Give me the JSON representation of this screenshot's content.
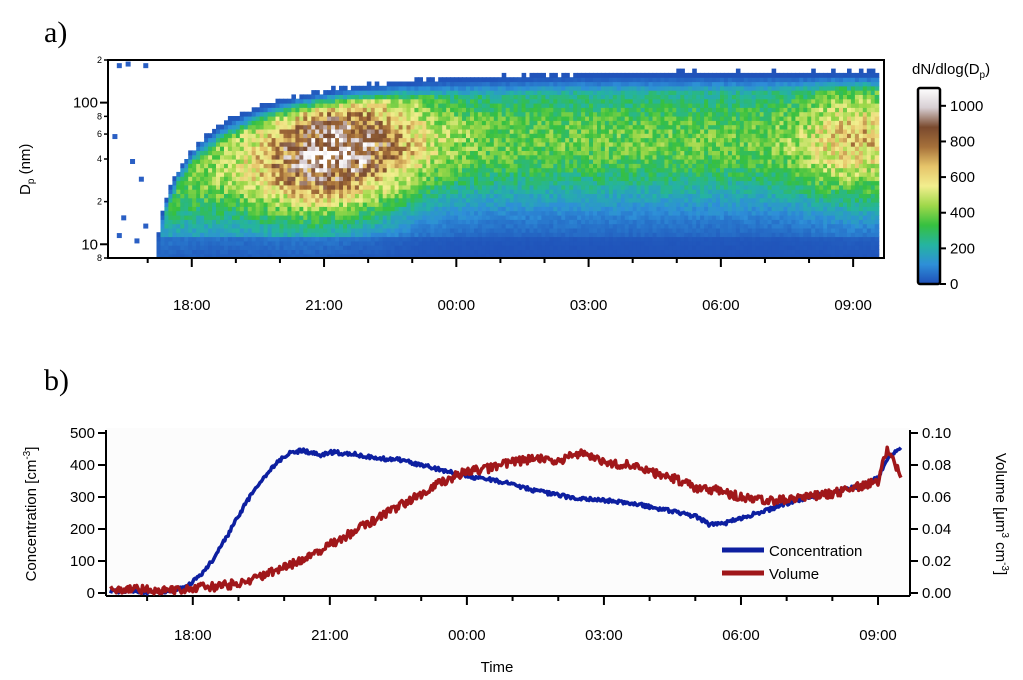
{
  "chart_data": [
    {
      "id": "a",
      "panel_label": "a)",
      "type": "heatmap",
      "ylabel": {
        "main": "D",
        "sub": "p",
        "suffix": " (nm)"
      },
      "y_scale": "log",
      "ylim_nm": [
        8,
        200
      ],
      "y_major_ticks": [
        {
          "value": 10,
          "label": "10"
        },
        {
          "value": 100,
          "label": "100"
        }
      ],
      "y_minor_ticks": [
        {
          "value": 8,
          "label": "8"
        },
        {
          "value": 20,
          "label": "2"
        },
        {
          "value": 40,
          "label": "4"
        },
        {
          "value": 60,
          "label": "6"
        },
        {
          "value": 80,
          "label": "8"
        },
        {
          "value": 200,
          "label": "2"
        }
      ],
      "x_tick_labels": [
        "18:00",
        "21:00",
        "00:00",
        "03:00",
        "06:00",
        "09:00"
      ],
      "x_ticks_hours": [
        18,
        21,
        24,
        27,
        30,
        33
      ],
      "xlim_hours": [
        16.1,
        33.7
      ],
      "data_hours": [
        17.2,
        33.5
      ],
      "colorbar": {
        "title": "dN/dlog(D",
        "title_sub": "p",
        "title_suffix": ")",
        "ticks": [
          0,
          200,
          400,
          600,
          800,
          1000
        ],
        "range": [
          0,
          1100
        ],
        "colors": [
          "#1f4fb8",
          "#2e8fd8",
          "#25b4a0",
          "#36c040",
          "#9fd84a",
          "#f2ee8e",
          "#e6c46a",
          "#a6703a",
          "#7a4a2e",
          "#d8cfd4",
          "#ffffff"
        ]
      },
      "description_points": [
        {
          "t": 17.5,
          "dp_nm": 9,
          "dN": 100
        },
        {
          "t": 20.5,
          "dp_nm": 40,
          "dN": 1000
        },
        {
          "t": 21.5,
          "dp_nm": 45,
          "dN": 1100
        },
        {
          "t": 24.0,
          "dp_nm": 50,
          "dN": 450
        },
        {
          "t": 27.0,
          "dp_nm": 55,
          "dN": 350
        },
        {
          "t": 33.0,
          "dp_nm": 45,
          "dN": 650
        }
      ]
    },
    {
      "id": "b",
      "panel_label": "b)",
      "type": "line",
      "xlabel": "Time",
      "ylabel_left": {
        "main": "Concentration [cm",
        "sup": "-3",
        "suffix": "]"
      },
      "ylabel_right": {
        "p1": "Volume [μm",
        "sup1": "3",
        "p2": " cm",
        "sup2": "-3",
        "p3": "]"
      },
      "x_tick_labels": [
        "18:00",
        "21:00",
        "00:00",
        "03:00",
        "06:00",
        "09:00"
      ],
      "x_ticks_hours": [
        18,
        21,
        24,
        27,
        30,
        33
      ],
      "xlim_hours": [
        16.1,
        33.7
      ],
      "ylim_left": [
        0,
        500
      ],
      "yticks_left": [
        0,
        100,
        200,
        300,
        400,
        500
      ],
      "ylim_right": [
        0,
        0.1
      ],
      "yticks_right": [
        "0.00",
        "0.02",
        "0.04",
        "0.06",
        "0.08",
        "0.10"
      ],
      "legend_position": "bottom-right",
      "series": [
        {
          "name": "Concentration",
          "axis": "left",
          "color": "#0d1fa0",
          "points": [
            [
              16.2,
              5
            ],
            [
              16.7,
              8
            ],
            [
              17.0,
              3
            ],
            [
              17.5,
              5
            ],
            [
              17.8,
              15
            ],
            [
              18.0,
              35
            ],
            [
              18.3,
              75
            ],
            [
              18.6,
              140
            ],
            [
              18.9,
              215
            ],
            [
              19.2,
              290
            ],
            [
              19.5,
              350
            ],
            [
              19.8,
              400
            ],
            [
              20.1,
              438
            ],
            [
              20.4,
              445
            ],
            [
              20.8,
              430
            ],
            [
              21.0,
              440
            ],
            [
              21.5,
              435
            ],
            [
              22.0,
              420
            ],
            [
              22.5,
              418
            ],
            [
              23.0,
              400
            ],
            [
              23.5,
              382
            ],
            [
              24.0,
              365
            ],
            [
              24.5,
              355
            ],
            [
              25.0,
              340
            ],
            [
              25.5,
              320
            ],
            [
              26.0,
              305
            ],
            [
              26.5,
              295
            ],
            [
              27.0,
              290
            ],
            [
              27.5,
              282
            ],
            [
              28.0,
              270
            ],
            [
              28.5,
              255
            ],
            [
              29.0,
              240
            ],
            [
              29.3,
              215
            ],
            [
              29.7,
              220
            ],
            [
              30.0,
              235
            ],
            [
              30.5,
              255
            ],
            [
              31.0,
              280
            ],
            [
              31.5,
              300
            ],
            [
              32.0,
              315
            ],
            [
              32.5,
              330
            ],
            [
              33.0,
              360
            ],
            [
              33.2,
              420
            ],
            [
              33.5,
              455
            ]
          ]
        },
        {
          "name": "Volume",
          "axis": "right",
          "color": "#a0171a",
          "points": [
            [
              16.2,
              0.002
            ],
            [
              16.8,
              0.002
            ],
            [
              17.5,
              0.002
            ],
            [
              18.0,
              0.003
            ],
            [
              18.5,
              0.004
            ],
            [
              19.0,
              0.006
            ],
            [
              19.5,
              0.01
            ],
            [
              20.0,
              0.016
            ],
            [
              20.5,
              0.022
            ],
            [
              21.0,
              0.03
            ],
            [
              21.5,
              0.038
            ],
            [
              22.0,
              0.046
            ],
            [
              22.5,
              0.054
            ],
            [
              23.0,
              0.062
            ],
            [
              23.5,
              0.07
            ],
            [
              24.0,
              0.076
            ],
            [
              24.5,
              0.078
            ],
            [
              25.0,
              0.082
            ],
            [
              25.5,
              0.084
            ],
            [
              26.0,
              0.082
            ],
            [
              26.5,
              0.088
            ],
            [
              27.0,
              0.082
            ],
            [
              27.5,
              0.08
            ],
            [
              28.0,
              0.076
            ],
            [
              28.5,
              0.072
            ],
            [
              29.0,
              0.066
            ],
            [
              29.5,
              0.064
            ],
            [
              30.0,
              0.06
            ],
            [
              30.5,
              0.058
            ],
            [
              31.0,
              0.058
            ],
            [
              31.5,
              0.06
            ],
            [
              32.0,
              0.062
            ],
            [
              32.5,
              0.066
            ],
            [
              33.0,
              0.07
            ],
            [
              33.2,
              0.09
            ],
            [
              33.5,
              0.074
            ]
          ]
        }
      ]
    }
  ]
}
